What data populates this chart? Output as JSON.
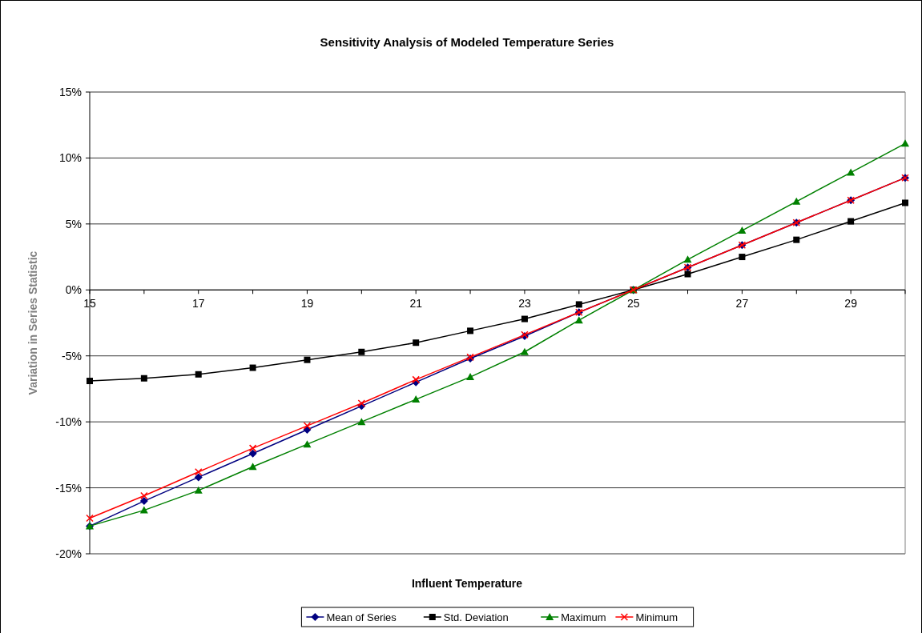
{
  "chart_data": {
    "type": "line",
    "title": "Sensitivity Analysis of Modeled Temperature Series",
    "xlabel": "Influent Temperature",
    "ylabel": "Variation in Series Statistic",
    "x": [
      15,
      16,
      17,
      18,
      19,
      20,
      21,
      22,
      23,
      24,
      25,
      26,
      27,
      28,
      29,
      30
    ],
    "series": [
      {
        "name": "Mean of Series",
        "color": "#000080",
        "marker": "diamond",
        "values": [
          -17.9,
          -16.0,
          -14.2,
          -12.4,
          -10.6,
          -8.8,
          -7.0,
          -5.2,
          -3.5,
          -1.7,
          0,
          1.7,
          3.4,
          5.1,
          6.8,
          8.5
        ]
      },
      {
        "name": "Std. Deviation",
        "color": "#000000",
        "marker": "square",
        "values": [
          -6.9,
          -6.7,
          -6.4,
          -5.9,
          -5.3,
          -4.7,
          -4.0,
          -3.1,
          -2.2,
          -1.1,
          0,
          1.2,
          2.5,
          3.8,
          5.2,
          6.6
        ]
      },
      {
        "name": "Maximum",
        "color": "#008000",
        "marker": "triangle",
        "values": [
          -17.9,
          -16.7,
          -15.2,
          -13.4,
          -11.7,
          -10.0,
          -8.3,
          -6.6,
          -4.7,
          -2.3,
          0,
          2.3,
          4.5,
          6.7,
          8.9,
          11.1
        ]
      },
      {
        "name": "Minimum",
        "color": "#ff0000",
        "marker": "cross",
        "values": [
          -17.3,
          -15.6,
          -13.8,
          -12.0,
          -10.3,
          -8.6,
          -6.8,
          -5.1,
          -3.4,
          -1.7,
          0,
          1.7,
          3.4,
          5.1,
          6.8,
          8.5
        ]
      }
    ],
    "xlim": [
      15,
      30
    ],
    "xticks": [
      15,
      17,
      19,
      21,
      23,
      25,
      27,
      29
    ],
    "ylim": [
      -20,
      15
    ],
    "yticks": [
      {
        "value": -20,
        "label": "-20%"
      },
      {
        "value": -15,
        "label": "-15%"
      },
      {
        "value": -10,
        "label": "-10%"
      },
      {
        "value": -5,
        "label": "-5%"
      },
      {
        "value": 0,
        "label": "0%"
      },
      {
        "value": 5,
        "label": "5%"
      },
      {
        "value": 10,
        "label": "10%"
      },
      {
        "value": 15,
        "label": "15%"
      }
    ],
    "grid": "y",
    "legend": "bottom"
  }
}
